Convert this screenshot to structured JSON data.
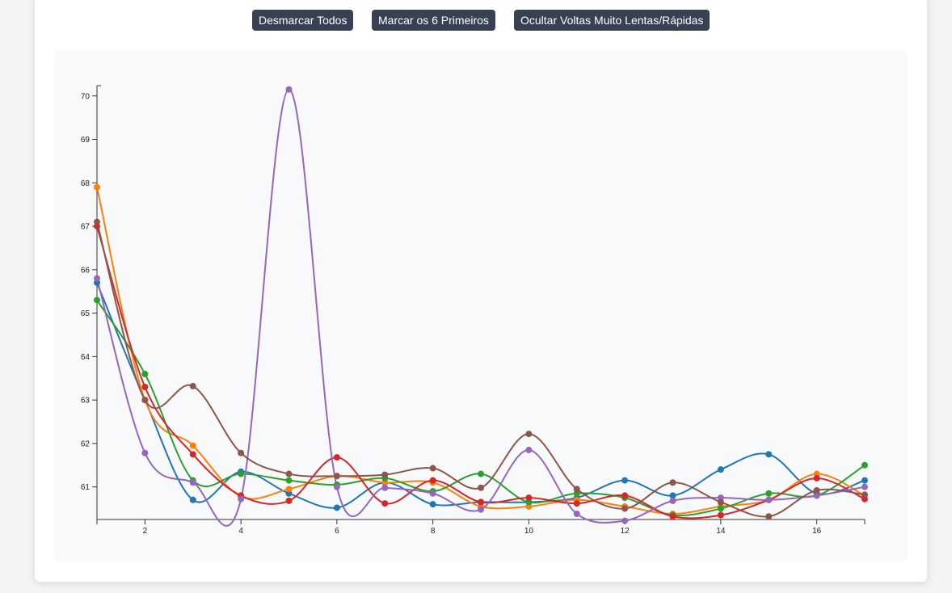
{
  "toolbar": {
    "uncheck_all": "Desmarcar Todos",
    "check_first_six": "Marcar os 6 Primeiros",
    "hide_outliers": "Ocultar Voltas Muito Lentas/Rápidas"
  },
  "chart_data": {
    "type": "line",
    "title": "",
    "xlabel": "",
    "ylabel": "",
    "xlim": [
      1,
      17
    ],
    "ylim": [
      60.25,
      70.2
    ],
    "x_ticks": [
      2,
      4,
      6,
      8,
      10,
      12,
      14,
      16
    ],
    "y_ticks": [
      61,
      62,
      63,
      64,
      65,
      66,
      67,
      68,
      69,
      70
    ],
    "grid": false,
    "legend": "none",
    "x": [
      1,
      2,
      3,
      4,
      5,
      6,
      7,
      8,
      9,
      10,
      11,
      12,
      13,
      14,
      15,
      16,
      17
    ],
    "series": [
      {
        "color": "#1f77b4",
        "values": [
          65.7,
          63.0,
          60.7,
          61.35,
          60.85,
          60.52,
          61.1,
          60.6,
          60.65,
          60.65,
          60.75,
          61.15,
          60.8,
          61.4,
          61.75,
          60.85,
          61.15
        ]
      },
      {
        "color": "#ff7f0e",
        "values": [
          67.9,
          63.0,
          61.95,
          60.78,
          60.95,
          61.25,
          61.1,
          61.1,
          60.55,
          60.55,
          60.7,
          60.55,
          60.38,
          60.55,
          60.7,
          61.3,
          60.8
        ]
      },
      {
        "color": "#2ca02c",
        "values": [
          65.3,
          63.6,
          61.15,
          61.3,
          61.15,
          61.05,
          61.2,
          60.9,
          61.3,
          60.65,
          60.85,
          60.75,
          60.35,
          60.5,
          60.85,
          60.8,
          61.5
        ]
      },
      {
        "color": "#d62728",
        "values": [
          67.0,
          63.3,
          61.75,
          60.8,
          60.68,
          61.68,
          60.62,
          61.15,
          60.65,
          60.75,
          60.62,
          60.8,
          60.32,
          60.35,
          60.7,
          61.2,
          60.72
        ]
      },
      {
        "color": "#9467bd",
        "values": [
          65.8,
          61.78,
          61.1,
          60.72,
          70.15,
          61.0,
          60.98,
          60.85,
          60.48,
          61.85,
          60.38,
          60.22,
          60.68,
          60.75,
          60.7,
          60.8,
          61.0
        ]
      },
      {
        "color": "#8c564b",
        "values": [
          67.1,
          63.0,
          63.32,
          61.78,
          61.3,
          61.25,
          61.28,
          61.43,
          60.98,
          62.22,
          60.95,
          60.5,
          61.1,
          60.65,
          60.32,
          60.92,
          60.82
        ]
      }
    ]
  }
}
